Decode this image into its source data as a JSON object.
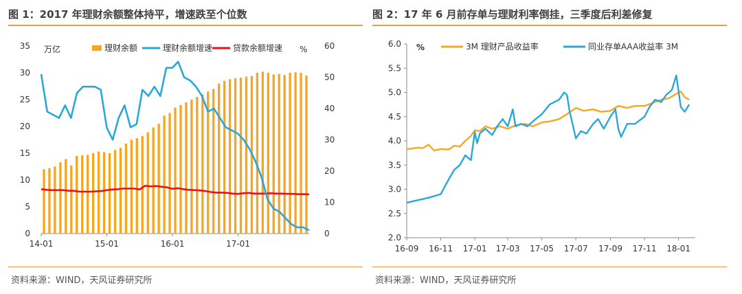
{
  "chart_data": [
    {
      "type": "bar",
      "title": "图 1：2017 年理财余额整体持平，增速跌至个位数",
      "source": "资料来源：WIND，天风证券研究所",
      "left_unit": "万亿",
      "right_unit": "%",
      "y_left_lim": [
        0,
        35
      ],
      "y_left_ticks": [
        "0",
        "5",
        "10",
        "15",
        "20",
        "25",
        "30",
        "35"
      ],
      "y_right_lim": [
        0,
        60
      ],
      "y_right_ticks": [
        "0",
        "10",
        "20",
        "30",
        "40",
        "50",
        "60"
      ],
      "x_tick_labels": [
        "14-01",
        "15-01",
        "16-01",
        "17-01"
      ],
      "x_tick_index": [
        0,
        12,
        24,
        36
      ],
      "legend_position": "top",
      "grid": false,
      "colors": {
        "bar": "#F5A623",
        "growth": "#2AA7D8",
        "loan": "#E8101A"
      },
      "series": [
        {
          "name": "理财余额",
          "kind": "bar",
          "axis": "left",
          "values": [
            12.0,
            12.2,
            12.5,
            13.3,
            13.9,
            12.7,
            14.5,
            14.6,
            14.7,
            15.0,
            15.3,
            15.2,
            15.0,
            15.6,
            16.0,
            16.8,
            17.5,
            17.8,
            18.2,
            18.9,
            19.8,
            20.5,
            22.0,
            22.5,
            23.5,
            24.0,
            24.5,
            25.0,
            25.5,
            26.0,
            26.5,
            27.0,
            28.0,
            28.5,
            28.8,
            29.0,
            29.1,
            29.3,
            29.4,
            30.0,
            30.2,
            30.0,
            29.7,
            29.8,
            29.6,
            30.0,
            30.1,
            30.0,
            29.5
          ]
        },
        {
          "name": "理财余额增速",
          "kind": "line",
          "axis": "right",
          "values": [
            51,
            39,
            38,
            37,
            41,
            37,
            45,
            47,
            47,
            47,
            46,
            34,
            30,
            37,
            41,
            34,
            35,
            46,
            44,
            47,
            44,
            53,
            53,
            55,
            50,
            49,
            47,
            44,
            39,
            40,
            37,
            34,
            33,
            32,
            30,
            27,
            23,
            18,
            11,
            8,
            7,
            5,
            3,
            2,
            2,
            1
          ]
        },
        {
          "name": "贷款余额增速",
          "kind": "line",
          "axis": "right",
          "values": [
            14.2,
            14.0,
            13.9,
            13.9,
            13.9,
            13.7,
            13.7,
            13.4,
            13.4,
            13.4,
            13.5,
            13.6,
            13.9,
            14.1,
            14.2,
            14.4,
            14.4,
            14.4,
            14.1,
            15.3,
            15.1,
            15.2,
            15.0,
            14.8,
            14.3,
            14.5,
            14.2,
            14.0,
            13.9,
            13.8,
            13.6,
            13.3,
            13.1,
            13.1,
            13.0,
            12.8,
            12.7,
            12.9,
            13.0,
            12.8,
            12.8,
            12.8,
            12.9,
            12.8,
            12.8,
            12.7,
            12.7,
            12.6,
            12.6,
            12.5
          ]
        }
      ]
    },
    {
      "type": "line",
      "title": "图 2：17 年 6 月前存单与理财利率倒挂，三季度后利差修复",
      "source": "资料来源：WIND，天风证券研究所",
      "unit": "%",
      "ylim": [
        2.0,
        6.0
      ],
      "y_ticks": [
        "2.0",
        "2.5",
        "3.0",
        "3.5",
        "4.0",
        "4.5",
        "5.0",
        "5.5",
        "6.0"
      ],
      "x_tick_labels": [
        "16-09",
        "16-11",
        "17-01",
        "17-03",
        "17-05",
        "17-07",
        "17-09",
        "17-11",
        "18-01"
      ],
      "x_lim": [
        "2016-09-01",
        "2018-01-31"
      ],
      "legend_position": "top",
      "grid": false,
      "colors": {
        "wmp": "#F5A623",
        "cd": "#2AA7D8"
      },
      "series": [
        {
          "name": "3M 理财产品收益率",
          "points": [
            [
              "2016-09-01",
              3.83
            ],
            [
              "2016-09-10",
              3.84
            ],
            [
              "2016-09-20",
              3.86
            ],
            [
              "2016-09-30",
              3.85
            ],
            [
              "2016-10-10",
              3.92
            ],
            [
              "2016-10-20",
              3.8
            ],
            [
              "2016-11-01",
              3.83
            ],
            [
              "2016-11-15",
              3.82
            ],
            [
              "2016-11-25",
              3.9
            ],
            [
              "2016-12-05",
              3.88
            ],
            [
              "2016-12-15",
              4.0
            ],
            [
              "2016-12-25",
              4.1
            ],
            [
              "2017-01-01",
              4.22
            ],
            [
              "2017-01-10",
              4.2
            ],
            [
              "2017-01-20",
              4.3
            ],
            [
              "2017-02-01",
              4.25
            ],
            [
              "2017-02-15",
              4.3
            ],
            [
              "2017-03-01",
              4.25
            ],
            [
              "2017-03-15",
              4.32
            ],
            [
              "2017-04-01",
              4.35
            ],
            [
              "2017-04-15",
              4.3
            ],
            [
              "2017-05-01",
              4.38
            ],
            [
              "2017-05-15",
              4.4
            ],
            [
              "2017-06-01",
              4.45
            ],
            [
              "2017-06-15",
              4.55
            ],
            [
              "2017-07-01",
              4.68
            ],
            [
              "2017-07-15",
              4.62
            ],
            [
              "2017-08-01",
              4.65
            ],
            [
              "2017-08-15",
              4.6
            ],
            [
              "2017-09-01",
              4.62
            ],
            [
              "2017-09-15",
              4.72
            ],
            [
              "2017-10-01",
              4.68
            ],
            [
              "2017-10-15",
              4.72
            ],
            [
              "2017-11-01",
              4.72
            ],
            [
              "2017-11-15",
              4.78
            ],
            [
              "2017-12-01",
              4.85
            ],
            [
              "2017-12-15",
              4.88
            ],
            [
              "2017-12-25",
              4.95
            ],
            [
              "2018-01-05",
              5.02
            ],
            [
              "2018-01-12",
              4.9
            ],
            [
              "2018-01-20",
              4.85
            ]
          ]
        },
        {
          "name": "同业存单AAA收益率 3M",
          "points": [
            [
              "2016-09-01",
              2.72
            ],
            [
              "2016-09-15",
              2.76
            ],
            [
              "2016-10-01",
              2.8
            ],
            [
              "2016-10-15",
              2.84
            ],
            [
              "2016-11-01",
              2.9
            ],
            [
              "2016-11-15",
              3.2
            ],
            [
              "2016-11-25",
              3.4
            ],
            [
              "2016-12-05",
              3.5
            ],
            [
              "2016-12-15",
              3.7
            ],
            [
              "2016-12-25",
              3.6
            ],
            [
              "2017-01-01",
              4.18
            ],
            [
              "2017-01-05",
              3.95
            ],
            [
              "2017-01-10",
              4.15
            ],
            [
              "2017-01-20",
              4.25
            ],
            [
              "2017-02-01",
              4.12
            ],
            [
              "2017-02-10",
              4.3
            ],
            [
              "2017-02-20",
              4.45
            ],
            [
              "2017-03-01",
              4.3
            ],
            [
              "2017-03-10",
              4.65
            ],
            [
              "2017-03-15",
              4.3
            ],
            [
              "2017-03-25",
              4.35
            ],
            [
              "2017-04-05",
              4.3
            ],
            [
              "2017-04-20",
              4.45
            ],
            [
              "2017-05-01",
              4.55
            ],
            [
              "2017-05-15",
              4.75
            ],
            [
              "2017-06-01",
              4.85
            ],
            [
              "2017-06-10",
              5.0
            ],
            [
              "2017-06-15",
              4.95
            ],
            [
              "2017-06-20",
              4.6
            ],
            [
              "2017-06-25",
              4.35
            ],
            [
              "2017-07-01",
              4.05
            ],
            [
              "2017-07-10",
              4.2
            ],
            [
              "2017-07-20",
              4.15
            ],
            [
              "2017-08-01",
              4.35
            ],
            [
              "2017-08-10",
              4.45
            ],
            [
              "2017-08-20",
              4.25
            ],
            [
              "2017-09-01",
              4.5
            ],
            [
              "2017-09-10",
              4.65
            ],
            [
              "2017-09-15",
              4.25
            ],
            [
              "2017-09-20",
              4.08
            ],
            [
              "2017-10-01",
              4.35
            ],
            [
              "2017-10-15",
              4.35
            ],
            [
              "2017-11-01",
              4.5
            ],
            [
              "2017-11-10",
              4.7
            ],
            [
              "2017-11-20",
              4.85
            ],
            [
              "2017-12-01",
              4.8
            ],
            [
              "2017-12-10",
              4.95
            ],
            [
              "2017-12-20",
              5.05
            ],
            [
              "2017-12-28",
              5.35
            ],
            [
              "2018-01-05",
              4.7
            ],
            [
              "2018-01-12",
              4.6
            ],
            [
              "2018-01-20",
              4.75
            ]
          ]
        }
      ]
    }
  ]
}
